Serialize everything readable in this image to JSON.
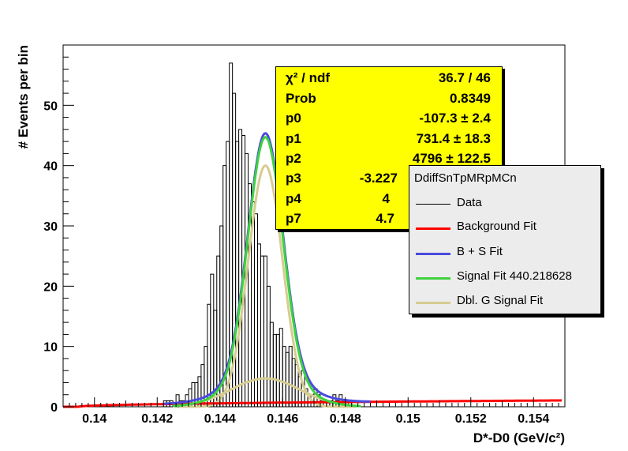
{
  "chart_data": {
    "type": "histogram-fit",
    "xlabel": "D*-D0 (GeV/c²)",
    "ylabel": "# Events per bin",
    "xlim": [
      0.139,
      0.155
    ],
    "ylim": [
      0,
      60
    ],
    "xticks": [
      0.14,
      0.142,
      0.144,
      0.146,
      0.148,
      0.15,
      0.152,
      0.154
    ],
    "xtick_labels": [
      "0.14",
      "0.142",
      "0.144",
      "0.146",
      "0.148",
      "0.15",
      "0.152",
      "0.154"
    ],
    "yticks": [
      0,
      10,
      20,
      30,
      40,
      50
    ],
    "ytick_labels": [
      "0",
      "10",
      "20",
      "30",
      "40",
      "50"
    ],
    "grid": false,
    "histogram": {
      "name": "Data",
      "bin_start": 0.1422,
      "bin_width": 0.0001,
      "counts": [
        1,
        1,
        1,
        0,
        2,
        1,
        1,
        2,
        3,
        4,
        4,
        5,
        7,
        10,
        17,
        22,
        16,
        25,
        30,
        40,
        44,
        57,
        52,
        44,
        46,
        45,
        42,
        37,
        34,
        32,
        27,
        25,
        25,
        20,
        14,
        12,
        12,
        13,
        10,
        9,
        10,
        8,
        7,
        5,
        6,
        3,
        2,
        2,
        3,
        2,
        1,
        1,
        1,
        1,
        2,
        1,
        2,
        1,
        0,
        1
      ]
    },
    "curves": [
      {
        "name": "Background Fit",
        "color": "#ff0000"
      },
      {
        "name": "B + S Fit",
        "color": "#4a4adf"
      },
      {
        "name": "Signal Fit 440.218628",
        "color": "#3ed23e"
      },
      {
        "name": "Dbl. G Signal Fit",
        "color": "#d6cc90"
      }
    ],
    "fit_model": {
      "peak": 0.14545,
      "narrow_amplitude": 40,
      "narrow_sigma": 0.00055,
      "wide_amplitude": 4.7,
      "wide_sigma": 0.0011,
      "background": {
        "threshold": 0.1395,
        "scale": 8.5,
        "power": 0.5
      }
    },
    "stats_box": {
      "rows": [
        {
          "label": "χ² / ndf",
          "value": "36.7 / 46"
        },
        {
          "label": "Prob",
          "value": "0.8349"
        },
        {
          "label": "p0",
          "value": "-107.3 ± 2.4"
        },
        {
          "label": "p1",
          "value": "731.4 ± 18.3"
        },
        {
          "label": "p2",
          "value": "4796 ± 122.5"
        },
        {
          "label": "p3",
          "value": "-3.227"
        },
        {
          "label": "p4",
          "value": "4"
        },
        {
          "label": "p7",
          "value": "4.7"
        }
      ]
    },
    "legend": {
      "title": "DdiffSnTpMRpMCn",
      "placement": "right",
      "entries": [
        {
          "label": "Data",
          "color": "#000000"
        },
        {
          "label": "Background Fit",
          "color": "#ff0000"
        },
        {
          "label": "B + S Fit",
          "color": "#4a4adf"
        },
        {
          "label": "Signal Fit 440.218628",
          "color": "#3ed23e"
        },
        {
          "label": "Dbl. G Signal Fit",
          "color": "#d6cc90"
        }
      ]
    }
  }
}
